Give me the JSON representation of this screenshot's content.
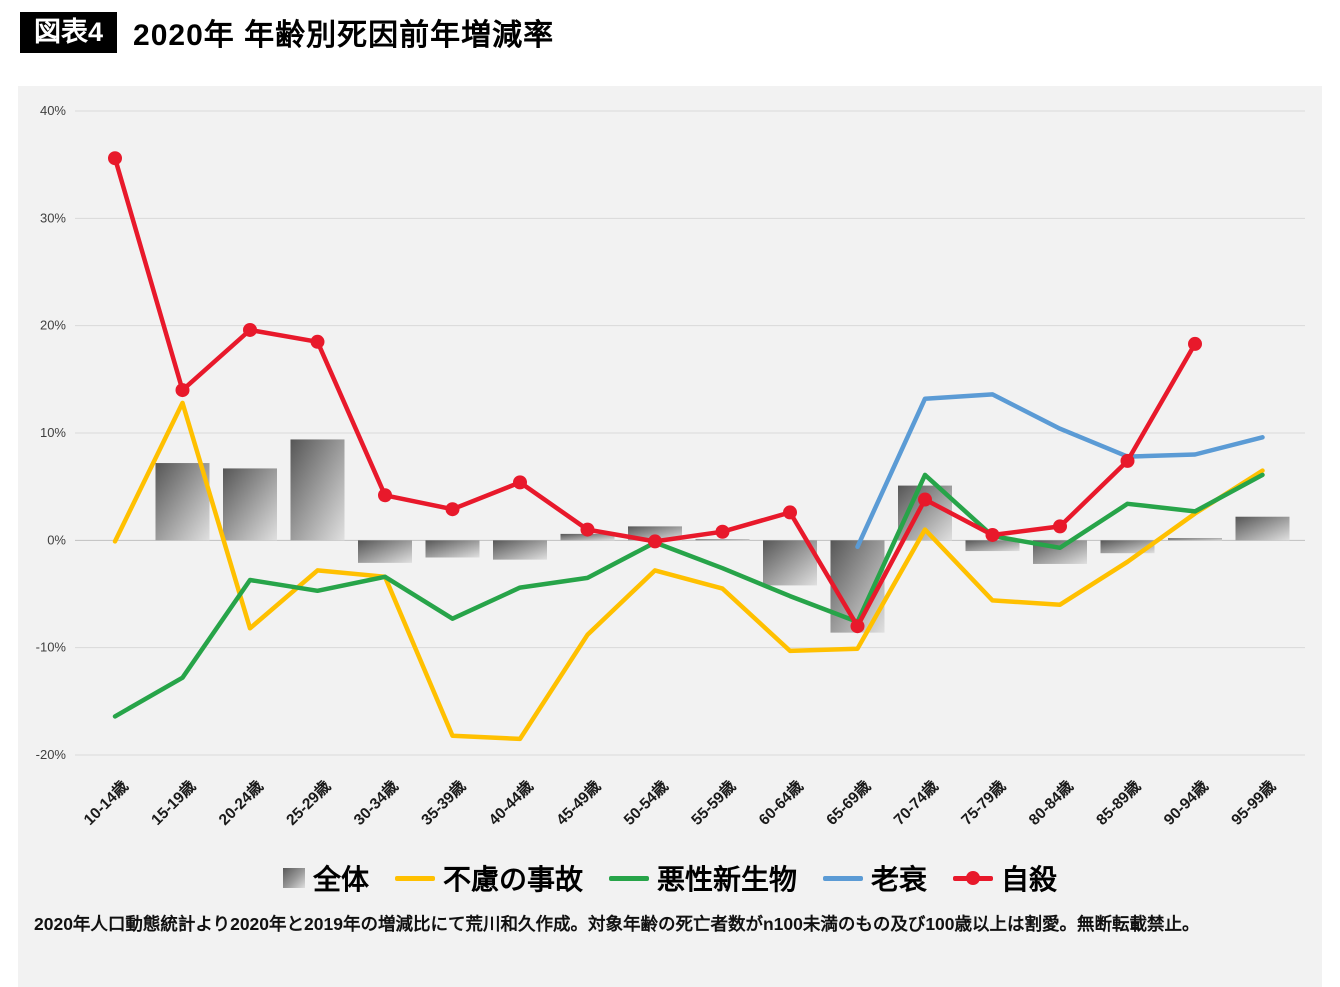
{
  "header": {
    "badge": "図表4",
    "title": "2020年 年齢別死因前年増減率"
  },
  "footer": {
    "text": "2020年人口動態統計より2020年と2019年の増減比にて荒川和久作成。対象年齢の死亡者数がn100未満のもの及び100歳以上は割愛。無断転載禁止。"
  },
  "chart_data": {
    "type": "bar",
    "title": "2020年 年齢別死因前年増減率",
    "xlabel": "",
    "ylabel": "",
    "ylim": [
      -20,
      40
    ],
    "grid": true,
    "legend_position": "bottom",
    "categories": [
      "10-14歳",
      "15-19歳",
      "20-24歳",
      "25-29歳",
      "30-34歳",
      "35-39歳",
      "40-44歳",
      "45-49歳",
      "50-54歳",
      "55-59歳",
      "60-64歳",
      "65-69歳",
      "70-74歳",
      "75-79歳",
      "80-84歳",
      "85-89歳",
      "90-94歳",
      "95-99歳"
    ],
    "y_ticks": [
      {
        "label": "40%",
        "value": 40
      },
      {
        "label": "30%",
        "value": 30
      },
      {
        "label": "20%",
        "value": 20
      },
      {
        "label": "10%",
        "value": 10
      },
      {
        "label": "0%",
        "value": 0
      },
      {
        "label": "-10%",
        "value": -10
      },
      {
        "label": "-20%",
        "value": -20
      }
    ],
    "series": [
      {
        "name": "全体",
        "type": "bar",
        "color": "#7f7f7f",
        "values": [
          0,
          7.2,
          6.7,
          9.4,
          -2.1,
          -1.6,
          -1.8,
          0.6,
          1.3,
          0.1,
          -4.2,
          -8.6,
          5.1,
          -1.0,
          -2.2,
          -1.2,
          0.2,
          2.2
        ]
      },
      {
        "name": "不慮の事故",
        "type": "line",
        "color": "#FFC000",
        "marker": false,
        "values": [
          -0.1,
          12.8,
          -8.2,
          -2.8,
          -3.4,
          -18.2,
          -18.5,
          -8.8,
          -2.8,
          -4.5,
          -10.3,
          -10.1,
          1.0,
          -5.6,
          -6.0,
          -2.0,
          2.5,
          6.5
        ]
      },
      {
        "name": "悪性新生物",
        "type": "line",
        "color": "#27A449",
        "marker": false,
        "values": [
          -16.4,
          -12.8,
          -3.7,
          -4.7,
          -3.4,
          -7.3,
          -4.4,
          -3.5,
          -0.2,
          -2.6,
          -5.2,
          -7.6,
          6.1,
          0.4,
          -0.7,
          3.4,
          2.7,
          6.1
        ]
      },
      {
        "name": "老衰",
        "type": "line",
        "color": "#5B9BD5",
        "marker": false,
        "values": [
          null,
          null,
          null,
          null,
          null,
          null,
          null,
          null,
          null,
          null,
          null,
          -0.6,
          13.2,
          13.6,
          10.4,
          7.8,
          8.0,
          9.6
        ]
      },
      {
        "name": "自殺",
        "type": "line",
        "color": "#E8192B",
        "marker": true,
        "values": [
          35.6,
          14.0,
          19.6,
          18.5,
          4.2,
          2.9,
          5.4,
          1.0,
          -0.1,
          0.8,
          2.6,
          -8.0,
          3.8,
          0.5,
          1.3,
          7.4,
          18.3,
          null
        ]
      }
    ]
  }
}
